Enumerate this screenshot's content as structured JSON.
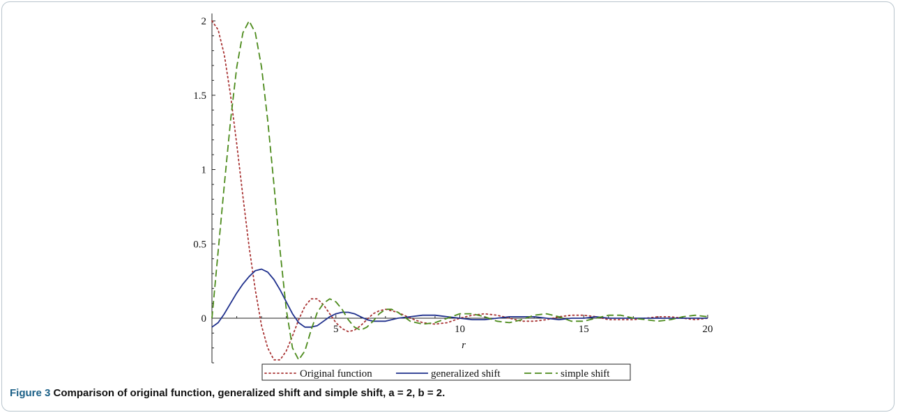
{
  "caption": {
    "label": "Figure 3",
    "text": " Comparison of original function, generalized shift and simple shift, a = 2, b = 2."
  },
  "chart_data": {
    "type": "line",
    "xlabel": "r",
    "ylabel": "",
    "xlim": [
      0,
      20
    ],
    "ylim": [
      -0.3,
      2.05
    ],
    "x_ticks": [
      5,
      10,
      15,
      20
    ],
    "y_ticks": [
      0,
      0.5,
      1,
      1.5,
      2
    ],
    "y_tick_labels": [
      "0",
      "0.5",
      "1",
      "1.5",
      "2"
    ],
    "x_tick_labels": [
      "5",
      "10",
      "15",
      "20"
    ],
    "legend_position": "bottom",
    "series": [
      {
        "name": "Original function",
        "color": "#a83232",
        "style": "dotted",
        "x": [
          0,
          0.25,
          0.5,
          0.75,
          1,
          1.25,
          1.5,
          1.75,
          2,
          2.25,
          2.5,
          2.75,
          3,
          3.25,
          3.5,
          3.75,
          4,
          4.25,
          4.5,
          4.75,
          5,
          5.25,
          5.5,
          5.75,
          6,
          6.25,
          6.5,
          6.75,
          7,
          7.5,
          8,
          8.5,
          9,
          9.5,
          10,
          10.5,
          11,
          11.5,
          12,
          12.5,
          13,
          13.5,
          14,
          14.5,
          15,
          15.5,
          16,
          16.5,
          17,
          17.5,
          18,
          18.5,
          19,
          19.5,
          20
        ],
        "y": [
          2.0,
          1.94,
          1.77,
          1.5,
          1.17,
          0.82,
          0.48,
          0.19,
          -0.05,
          -0.2,
          -0.28,
          -0.28,
          -0.22,
          -0.12,
          -0.01,
          0.08,
          0.13,
          0.13,
          0.09,
          0.03,
          -0.03,
          -0.07,
          -0.09,
          -0.08,
          -0.05,
          -0.01,
          0.03,
          0.05,
          0.06,
          0.04,
          0.0,
          -0.03,
          -0.04,
          -0.03,
          0.0,
          0.02,
          0.03,
          0.02,
          0.0,
          -0.02,
          -0.02,
          -0.01,
          0.01,
          0.02,
          0.02,
          0.01,
          -0.01,
          -0.01,
          -0.01,
          0.0,
          0.01,
          0.01,
          0.0,
          -0.01,
          0.0
        ]
      },
      {
        "name": "generalized shift",
        "color": "#1e2f8c",
        "style": "solid",
        "x": [
          0,
          0.25,
          0.5,
          0.75,
          1,
          1.25,
          1.5,
          1.75,
          2,
          2.25,
          2.5,
          2.75,
          3,
          3.25,
          3.5,
          3.75,
          4,
          4.25,
          4.5,
          4.75,
          5,
          5.25,
          5.5,
          5.75,
          6,
          6.25,
          6.5,
          6.75,
          7,
          7.5,
          8,
          8.5,
          9,
          9.5,
          10,
          10.5,
          11,
          11.5,
          12,
          12.5,
          13,
          13.5,
          14,
          14.5,
          15,
          15.5,
          16,
          16.5,
          17,
          17.5,
          18,
          18.5,
          19,
          19.5,
          20
        ],
        "y": [
          -0.06,
          -0.03,
          0.03,
          0.1,
          0.17,
          0.23,
          0.28,
          0.32,
          0.33,
          0.31,
          0.26,
          0.19,
          0.11,
          0.03,
          -0.03,
          -0.06,
          -0.06,
          -0.05,
          -0.02,
          0.01,
          0.03,
          0.04,
          0.04,
          0.03,
          0.01,
          -0.01,
          -0.02,
          -0.02,
          -0.02,
          0.0,
          0.01,
          0.02,
          0.02,
          0.01,
          0.0,
          -0.01,
          -0.01,
          0.0,
          0.01,
          0.01,
          0.01,
          0.0,
          -0.01,
          0.0,
          0.0,
          0.01,
          0.0,
          0.0,
          0.0,
          0.0,
          0.0,
          0.0,
          0.0,
          0.0,
          0.0
        ]
      },
      {
        "name": "simple shift",
        "color": "#4b8a1a",
        "style": "dashed",
        "x": [
          0,
          0.25,
          0.5,
          0.75,
          1,
          1.25,
          1.5,
          1.75,
          2,
          2.25,
          2.5,
          2.75,
          3,
          3.25,
          3.5,
          3.75,
          4,
          4.25,
          4.5,
          4.75,
          5,
          5.25,
          5.5,
          5.75,
          6,
          6.25,
          6.5,
          6.75,
          7,
          7.25,
          7.5,
          7.75,
          8,
          8.5,
          9,
          9.5,
          10,
          10.5,
          11,
          11.5,
          12,
          12.5,
          13,
          13.5,
          14,
          14.5,
          15,
          15.5,
          16,
          16.5,
          17,
          17.5,
          18,
          18.5,
          19,
          19.5,
          20
        ],
        "y": [
          0.0,
          0.45,
          0.9,
          1.33,
          1.69,
          1.92,
          2.0,
          1.92,
          1.69,
          1.33,
          0.9,
          0.45,
          0.06,
          -0.2,
          -0.28,
          -0.22,
          -0.08,
          0.04,
          0.1,
          0.13,
          0.11,
          0.06,
          -0.01,
          -0.06,
          -0.08,
          -0.06,
          -0.02,
          0.03,
          0.06,
          0.06,
          0.04,
          0.01,
          -0.02,
          -0.04,
          -0.03,
          0.0,
          0.03,
          0.03,
          0.01,
          -0.02,
          -0.03,
          -0.01,
          0.02,
          0.03,
          0.01,
          -0.02,
          -0.02,
          0.0,
          0.02,
          0.02,
          0.0,
          -0.01,
          -0.02,
          -0.01,
          0.01,
          0.02,
          0.01
        ]
      }
    ]
  }
}
